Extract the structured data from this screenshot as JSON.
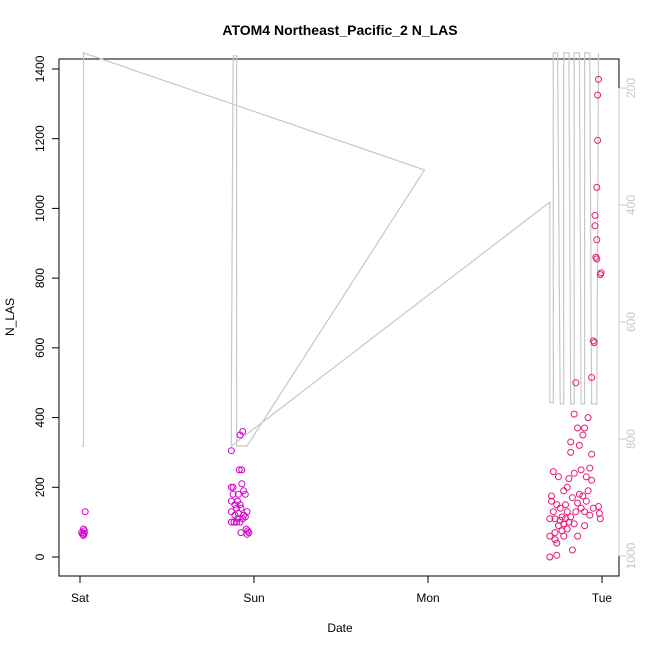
{
  "chart_data": {
    "type": "scatter",
    "title": "ATOM4 Northeast_Pacific_2 N_LAS",
    "xlabel": "Date",
    "ylabel": "N_LAS",
    "ylim": [
      0,
      1420
    ],
    "yticks": [
      0,
      200,
      400,
      600,
      800,
      1000,
      1200,
      1400
    ],
    "x_ticks": [
      {
        "day": 0,
        "label": "Sat"
      },
      {
        "day": 1,
        "label": "Sun"
      },
      {
        "day": 2,
        "label": "Mon"
      },
      {
        "day": 3,
        "label": "Tue"
      }
    ],
    "y2_ticks": [
      200,
      400,
      600,
      800,
      1000
    ],
    "y2_range_top_to_bottom": [
      140,
      1020
    ],
    "grid": false,
    "colors": {
      "points": "#e8197a",
      "points_alt": "#d400c8",
      "depth_line": "#c8c8c8",
      "axis": "#000000",
      "secondary_axis": "#c8c8c8"
    },
    "series": [
      {
        "color": "#d400c8",
        "points": [
          [
            0.01,
            70
          ],
          [
            0.015,
            65
          ],
          [
            0.02,
            80
          ],
          [
            0.02,
            62
          ],
          [
            0.025,
            75
          ],
          [
            0.025,
            68
          ],
          [
            0.03,
            130
          ],
          [
            0.87,
            100
          ],
          [
            0.87,
            130
          ],
          [
            0.87,
            160
          ],
          [
            0.87,
            200
          ],
          [
            0.87,
            305
          ],
          [
            0.88,
            180
          ],
          [
            0.88,
            200
          ],
          [
            0.885,
            100
          ],
          [
            0.89,
            120
          ],
          [
            0.89,
            150
          ],
          [
            0.9,
            100
          ],
          [
            0.9,
            140
          ],
          [
            0.905,
            110
          ],
          [
            0.905,
            160
          ],
          [
            0.91,
            125
          ],
          [
            0.91,
            180
          ],
          [
            0.915,
            250
          ],
          [
            0.92,
            100
          ],
          [
            0.92,
            150
          ],
          [
            0.92,
            350
          ],
          [
            0.925,
            70
          ],
          [
            0.925,
            140
          ],
          [
            0.93,
            210
          ],
          [
            0.93,
            250
          ],
          [
            0.935,
            110
          ],
          [
            0.935,
            360
          ],
          [
            0.94,
            120
          ],
          [
            0.94,
            190
          ],
          [
            0.95,
            115
          ],
          [
            0.95,
            180
          ],
          [
            0.955,
            80
          ],
          [
            0.96,
            65
          ],
          [
            0.96,
            130
          ],
          [
            0.965,
            75
          ],
          [
            0.97,
            70
          ]
        ]
      },
      {
        "color": "#e8197a",
        "points": [
          [
            2.7,
            0
          ],
          [
            2.7,
            60
          ],
          [
            2.7,
            110
          ],
          [
            2.71,
            160
          ],
          [
            2.71,
            175
          ],
          [
            2.72,
            130
          ],
          [
            2.72,
            245
          ],
          [
            2.73,
            50
          ],
          [
            2.73,
            70
          ],
          [
            2.73,
            110
          ],
          [
            2.74,
            5
          ],
          [
            2.74,
            40
          ],
          [
            2.74,
            150
          ],
          [
            2.75,
            90
          ],
          [
            2.75,
            230
          ],
          [
            2.76,
            105
          ],
          [
            2.76,
            140
          ],
          [
            2.77,
            75
          ],
          [
            2.77,
            115
          ],
          [
            2.78,
            95
          ],
          [
            2.78,
            190
          ],
          [
            2.78,
            60
          ],
          [
            2.79,
            110
          ],
          [
            2.79,
            150
          ],
          [
            2.8,
            80
          ],
          [
            2.8,
            200
          ],
          [
            2.8,
            130
          ],
          [
            2.81,
            100
          ],
          [
            2.81,
            225
          ],
          [
            2.82,
            115
          ],
          [
            2.82,
            300
          ],
          [
            2.82,
            330
          ],
          [
            2.83,
            20
          ],
          [
            2.83,
            170
          ],
          [
            2.84,
            95
          ],
          [
            2.84,
            240
          ],
          [
            2.84,
            410
          ],
          [
            2.85,
            500
          ],
          [
            2.85,
            130
          ],
          [
            2.86,
            370
          ],
          [
            2.86,
            155
          ],
          [
            2.86,
            60
          ],
          [
            2.87,
            180
          ],
          [
            2.87,
            320
          ],
          [
            2.88,
            140
          ],
          [
            2.88,
            250
          ],
          [
            2.89,
            350
          ],
          [
            2.89,
            175
          ],
          [
            2.9,
            90
          ],
          [
            2.9,
            130
          ],
          [
            2.9,
            370
          ],
          [
            2.91,
            160
          ],
          [
            2.91,
            230
          ],
          [
            2.92,
            190
          ],
          [
            2.92,
            400
          ],
          [
            2.93,
            120
          ],
          [
            2.93,
            255
          ],
          [
            2.94,
            295
          ],
          [
            2.94,
            220
          ],
          [
            2.94,
            515
          ],
          [
            2.95,
            140
          ],
          [
            2.95,
            620
          ],
          [
            2.955,
            615
          ],
          [
            2.96,
            980
          ],
          [
            2.96,
            950
          ],
          [
            2.965,
            860
          ],
          [
            2.97,
            855
          ],
          [
            2.97,
            910
          ],
          [
            2.97,
            1060
          ],
          [
            2.975,
            1195
          ],
          [
            2.975,
            1325
          ],
          [
            2.98,
            1370
          ],
          [
            2.98,
            145
          ],
          [
            2.985,
            125
          ],
          [
            2.99,
            110
          ],
          [
            2.99,
            810
          ],
          [
            2.995,
            815
          ]
        ]
      }
    ],
    "depth_profile": {
      "y2_units_note": "depth axis on right; larger values lower",
      "points": [
        [
          0.01,
          812
        ],
        [
          0.02,
          812
        ],
        [
          0.02,
          140
        ],
        [
          1.98,
          340
        ],
        [
          0.96,
          812
        ],
        [
          0.9,
          812
        ],
        [
          0.9,
          145
        ],
        [
          0.88,
          145
        ],
        [
          0.87,
          712
        ],
        [
          0.87,
          812
        ],
        [
          2.7,
          395
        ],
        [
          2.7,
          738
        ],
        [
          2.72,
          738
        ],
        [
          2.72,
          140
        ],
        [
          2.745,
          140
        ],
        [
          2.76,
          740
        ],
        [
          2.78,
          740
        ],
        [
          2.78,
          140
        ],
        [
          2.81,
          140
        ],
        [
          2.82,
          740
        ],
        [
          2.84,
          740
        ],
        [
          2.84,
          140
        ],
        [
          2.87,
          140
        ],
        [
          2.88,
          740
        ],
        [
          2.9,
          740
        ],
        [
          2.9,
          140
        ],
        [
          2.93,
          140
        ],
        [
          2.94,
          740
        ],
        [
          2.97,
          740
        ],
        [
          2.98,
          140
        ]
      ]
    }
  }
}
